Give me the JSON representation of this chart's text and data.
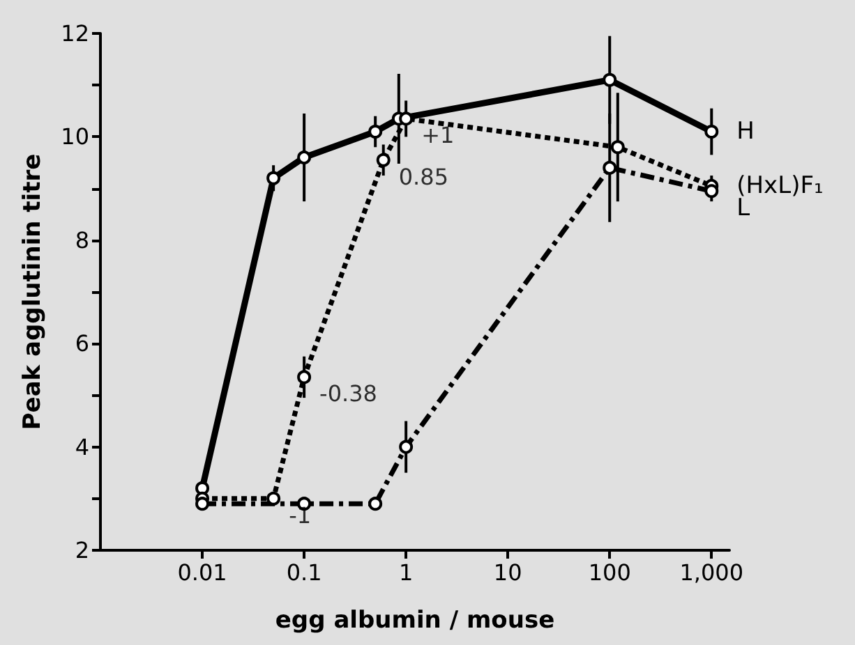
{
  "chart_data": {
    "type": "line",
    "xlabel": "egg albumin / mouse",
    "ylabel": "Peak agglutinin titre",
    "log": "x",
    "legend": false,
    "marker": "circle",
    "xlim": [
      0.001,
      1500
    ],
    "xticks": [
      0.01,
      0.1,
      1,
      10,
      100,
      {
        "value": 1000,
        "label": "1,000"
      }
    ],
    "ylim": [
      2,
      12
    ],
    "yticks": [
      2,
      {
        "value": 3,
        "label": null
      },
      4,
      {
        "value": 5,
        "label": null
      },
      6,
      {
        "value": 7,
        "label": null
      },
      8,
      {
        "value": 9,
        "label": null
      },
      10,
      {
        "value": 11,
        "label": null
      },
      12
    ],
    "series": [
      {
        "name": "H",
        "color": "#000000",
        "line_style": "solid",
        "x": [
          0.01,
          0.05,
          0.1,
          0.5,
          0.85,
          100,
          1000
        ],
        "values": [
          3.2,
          9.2,
          9.6,
          10.1,
          10.35,
          11.1,
          10.1
        ],
        "errors": [
          null,
          0.25,
          0.85,
          0.3,
          0.87,
          0.85,
          0.45
        ]
      },
      {
        "name": "(HxL)F₁",
        "color": "#000000",
        "line_style": "dotted",
        "x": [
          0.01,
          0.05,
          0.1,
          0.6,
          1,
          120,
          1000
        ],
        "values": [
          3.0,
          3.0,
          5.35,
          9.55,
          10.35,
          9.8,
          9.05
        ],
        "errors": [
          null,
          null,
          0.4,
          0.3,
          0.35,
          1.05,
          0.2
        ]
      },
      {
        "name": "L",
        "color": "#000000",
        "line_style": "dashed",
        "x": [
          0.01,
          0.1,
          0.5,
          1,
          100,
          1000
        ],
        "values": [
          2.9,
          2.9,
          2.9,
          4.0,
          9.4,
          8.95
        ],
        "errors": [
          null,
          null,
          null,
          0.5,
          1.05,
          0.2
        ]
      }
    ],
    "annotations": [
      {
        "text": "+1",
        "x": 1,
        "y": 10.35
      },
      {
        "text": "0.85",
        "x": 0.6,
        "y": 9.55
      },
      {
        "text": "-0.38",
        "x": 0.1,
        "y": 5.35
      },
      {
        "text": "-1",
        "x": 0.05,
        "y": 3.0
      }
    ]
  }
}
